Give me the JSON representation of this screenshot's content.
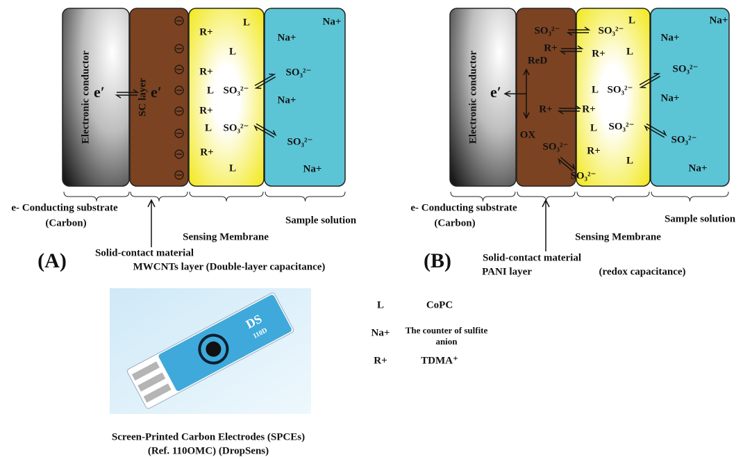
{
  "panel_a": {
    "id": "(A)",
    "conductor": "Electronic conductor",
    "sc_layer": "SC layer",
    "electrons": [
      "e′",
      "e′"
    ],
    "membrane_ions": [
      "R+",
      "L",
      "L",
      "R+",
      "L",
      "SO₃²⁻",
      "R+",
      "L",
      "SO₃²⁻",
      "R+",
      "L"
    ],
    "solution_ions": [
      "Na+",
      "Na+",
      "SO₃²⁻",
      "Na+",
      "SO₃²⁻",
      "Na+"
    ],
    "substrate_label": [
      "e- Conducting substrate",
      "(Carbon)"
    ],
    "membrane_label": "Sensing Membrane",
    "solution_label": "Sample solution",
    "contact_label": [
      "Solid-contact material",
      "MWCNTs layer  (Double-layer capacitance)"
    ]
  },
  "panel_b": {
    "id": "(B)",
    "conductor": "Electronic conductor",
    "layer_texts": [
      "SO₃²⁻",
      "R+",
      "ReD",
      "e′",
      "R+",
      "OX",
      "SO₃²⁻"
    ],
    "membrane_ions": [
      "SO₃²⁻",
      "L",
      "R+",
      "L",
      "L",
      "SO₃²⁻",
      "R+",
      "L",
      "SO₃²⁻",
      "R+",
      "L",
      "SO₃²⁻"
    ],
    "solution_ions": [
      "Na+",
      "Na+",
      "SO₃²⁻",
      "Na+",
      "SO₃²⁻",
      "Na+"
    ],
    "substrate_label": [
      "e- Conducting substrate",
      "(Carbon)"
    ],
    "membrane_label": "Sensing Membrane",
    "solution_label": "Sample solution",
    "contact_label": [
      "Solid-contact material",
      "PANI layer",
      "(redox capacitance)"
    ]
  },
  "legend": [
    {
      "symbol": "L",
      "text": [
        "CoPC"
      ]
    },
    {
      "symbol": "Na+",
      "text": [
        "The counter of sulfite",
        "anion"
      ]
    },
    {
      "symbol": "R+",
      "text": [
        "TDMA⁺"
      ]
    }
  ],
  "electrode": {
    "marking": [
      "DS",
      "110D"
    ],
    "caption": [
      "Screen-Printed Carbon Electrodes (SPCEs)",
      "(Ref. 110OMC) (DropSens)"
    ]
  }
}
